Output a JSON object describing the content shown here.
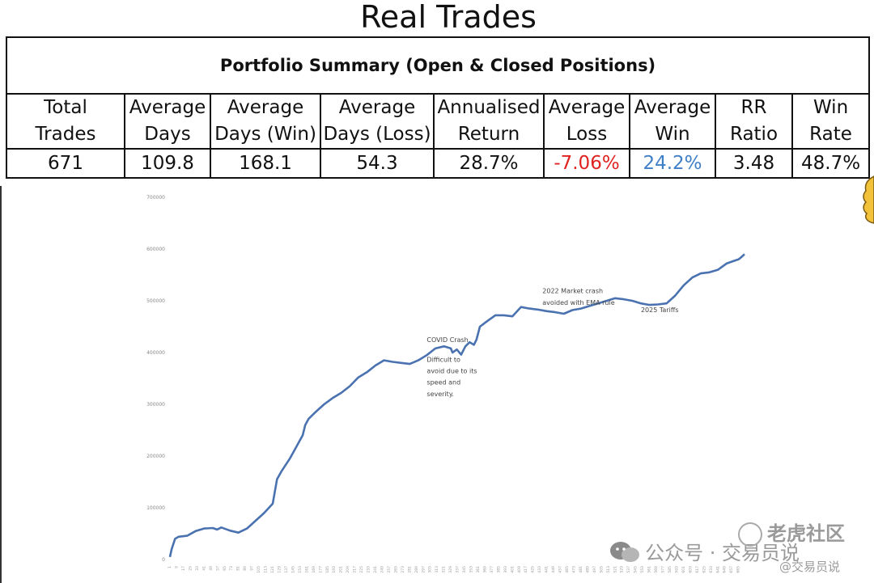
{
  "title": "Real Trades",
  "summary": {
    "heading": "Portfolio Summary (Open & Closed Positions)",
    "columns": [
      {
        "line1": "Total",
        "line2": "Trades",
        "value": "671"
      },
      {
        "line1": "Average",
        "line2": "Days",
        "value": "109.8"
      },
      {
        "line1": "Average",
        "line2": "Days (Win)",
        "value": "168.1"
      },
      {
        "line1": "Average",
        "line2": "Days (Loss)",
        "value": "54.3"
      },
      {
        "line1": "Annualised",
        "line2": "Return",
        "value": "28.7%"
      },
      {
        "line1": "Average",
        "line2": "Loss",
        "value": "-7.06%"
      },
      {
        "line1": "Average",
        "line2": "Win",
        "value": "24.2%"
      },
      {
        "line1": "RR",
        "line2": "Ratio",
        "value": "3.48"
      },
      {
        "line1": "Win",
        "line2": "Rate",
        "value": "48.7%"
      }
    ],
    "colors": {
      "loss": "#e0221f",
      "win": "#3f7fc7"
    }
  },
  "chart_data": {
    "type": "line",
    "title": "",
    "xlabel": "",
    "ylabel": "",
    "ylim": [
      0,
      700000
    ],
    "yticks": [
      0,
      100000,
      200000,
      300000,
      400000,
      500000,
      600000,
      700000
    ],
    "grid": false,
    "line_color": "#4a72b0",
    "series": [
      {
        "x": [
          0,
          2,
          4,
          6,
          10,
          20,
          30,
          40,
          50,
          55,
          60,
          70,
          80,
          90,
          100,
          110,
          120,
          125,
          130,
          140,
          145,
          150,
          155,
          158,
          162,
          170,
          180,
          190,
          200,
          210,
          220,
          230,
          240,
          250,
          260,
          270,
          280,
          290,
          300,
          310,
          320,
          328,
          330,
          335,
          340,
          345,
          350,
          355,
          358,
          362,
          370,
          380,
          390,
          400,
          410,
          420,
          430,
          440,
          450,
          460,
          470,
          480,
          490,
          500,
          510,
          520,
          530,
          540,
          550,
          560,
          570,
          580,
          590,
          600,
          610,
          620,
          630,
          640,
          650,
          660,
          664,
          667,
          671
        ],
        "y": [
          5000,
          20000,
          30000,
          40000,
          44000,
          46000,
          55000,
          60000,
          61000,
          58000,
          62000,
          56000,
          52000,
          60000,
          75000,
          90000,
          108000,
          155000,
          170000,
          195000,
          210000,
          225000,
          240000,
          260000,
          272000,
          285000,
          300000,
          312000,
          322000,
          335000,
          352000,
          362000,
          375000,
          385000,
          382000,
          380000,
          378000,
          385000,
          395000,
          408000,
          412000,
          408000,
          400000,
          406000,
          396000,
          412000,
          420000,
          415000,
          425000,
          450000,
          460000,
          472000,
          472000,
          470000,
          488000,
          485000,
          483000,
          480000,
          478000,
          475000,
          482000,
          485000,
          490000,
          495000,
          500000,
          505000,
          503000,
          500000,
          495000,
          492000,
          493000,
          495000,
          510000,
          530000,
          545000,
          553000,
          555000,
          560000,
          572000,
          578000,
          580000,
          584000,
          590000
        ]
      }
    ],
    "annotations": [
      {
        "text": "COVID Crash",
        "x": 300,
        "y": 420000
      },
      {
        "text": "Difficult to",
        "x": 300,
        "y": 382000
      },
      {
        "text": "avoid due to its",
        "x": 300,
        "y": 360000
      },
      {
        "text": "speed and",
        "x": 300,
        "y": 338000
      },
      {
        "text": "severity.",
        "x": 300,
        "y": 316000
      },
      {
        "text": "2022 Market crash",
        "x": 435,
        "y": 515000
      },
      {
        "text": "avoided with EMA rule",
        "x": 435,
        "y": 492000
      },
      {
        "text": "2025 Tariffs",
        "x": 550,
        "y": 478000
      }
    ]
  },
  "watermarks": {
    "main": "公众号 · 交易员说",
    "side": "老虎社区",
    "tag": "@交易员说"
  }
}
